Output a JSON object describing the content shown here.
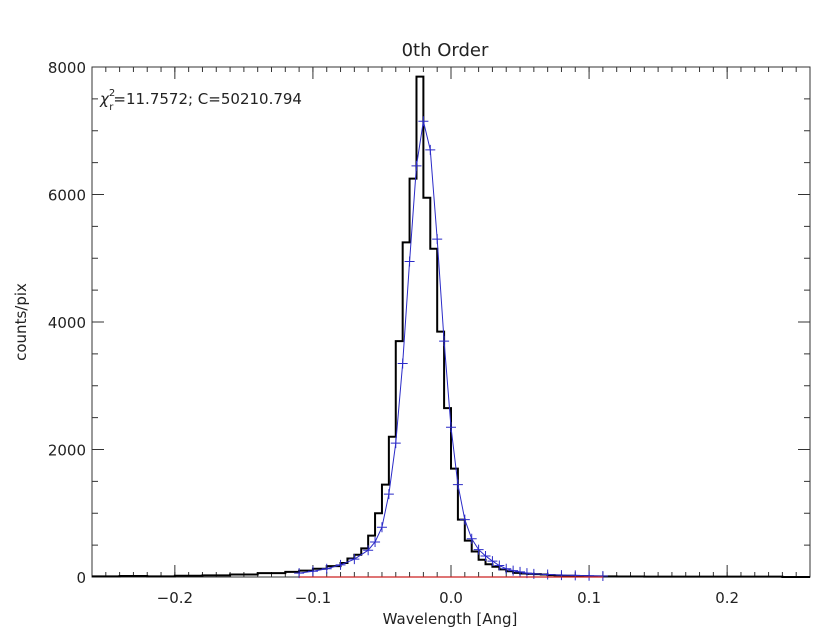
{
  "chart_data": {
    "type": "line",
    "title": "0th Order",
    "xlabel": "Wavelength [Ang]",
    "ylabel": "counts/pix",
    "xlim": [
      -0.26,
      0.26
    ],
    "ylim": [
      0,
      8000
    ],
    "x_ticks": [
      -0.2,
      -0.1,
      0.0,
      0.1,
      0.2
    ],
    "x_tick_labels": [
      "−0.2",
      "−0.1",
      "0.0",
      "0.1",
      "0.2"
    ],
    "y_ticks": [
      0,
      2000,
      4000,
      6000,
      8000
    ],
    "y_tick_labels": [
      "0",
      "2000",
      "4000",
      "6000",
      "8000"
    ],
    "annotation": {
      "symbol": "χ",
      "superscript": "2",
      "subscript": "r",
      "text": "=11.7572; C=50210.794"
    },
    "grid": false,
    "colors": {
      "histogram": "#000000",
      "model": "#2b2bc8",
      "baseline": "#cc2222",
      "axes": "#333333"
    },
    "series": [
      {
        "style": "step",
        "color": "#000000",
        "x": [
          -0.26,
          -0.24,
          -0.22,
          -0.2,
          -0.18,
          -0.16,
          -0.14,
          -0.12,
          -0.11,
          -0.1,
          -0.09,
          -0.08,
          -0.075,
          -0.07,
          -0.065,
          -0.06,
          -0.055,
          -0.05,
          -0.045,
          -0.04,
          -0.035,
          -0.03,
          -0.025,
          -0.02,
          -0.015,
          -0.01,
          -0.005,
          0.0,
          0.005,
          0.01,
          0.015,
          0.02,
          0.025,
          0.03,
          0.035,
          0.04,
          0.045,
          0.05,
          0.055,
          0.06,
          0.065,
          0.07,
          0.075,
          0.08,
          0.09,
          0.1,
          0.11,
          0.12,
          0.14,
          0.16,
          0.18,
          0.2,
          0.22,
          0.24
        ],
        "values": [
          10,
          15,
          10,
          20,
          25,
          40,
          60,
          80,
          100,
          130,
          170,
          220,
          290,
          350,
          450,
          650,
          1000,
          1450,
          2200,
          3700,
          5250,
          6250,
          7850,
          5950,
          5150,
          3850,
          2650,
          1700,
          900,
          570,
          400,
          270,
          200,
          160,
          120,
          90,
          65,
          55,
          50,
          45,
          40,
          30,
          25,
          20,
          15,
          10,
          10,
          8,
          5,
          5,
          5,
          5,
          5,
          0
        ]
      },
      {
        "style": "line-with-markers",
        "color": "#2b2bc8",
        "x": [
          -0.11,
          -0.1,
          -0.09,
          -0.08,
          -0.07,
          -0.06,
          -0.055,
          -0.05,
          -0.045,
          -0.04,
          -0.035,
          -0.03,
          -0.025,
          -0.02,
          -0.015,
          -0.01,
          -0.005,
          0.0,
          0.005,
          0.01,
          0.015,
          0.02,
          0.025,
          0.03,
          0.035,
          0.04,
          0.045,
          0.05,
          0.055,
          0.06,
          0.07,
          0.08,
          0.09,
          0.1,
          0.11
        ],
        "values": [
          60,
          90,
          130,
          190,
          280,
          420,
          550,
          780,
          1300,
          2100,
          3350,
          4950,
          6450,
          7150,
          6700,
          5300,
          3700,
          2350,
          1450,
          900,
          600,
          430,
          330,
          250,
          180,
          130,
          100,
          80,
          60,
          50,
          40,
          30,
          25,
          20,
          15
        ]
      },
      {
        "style": "line",
        "color": "#cc2222",
        "x": [
          -0.11,
          0.11
        ],
        "values": [
          0,
          0
        ]
      }
    ]
  }
}
